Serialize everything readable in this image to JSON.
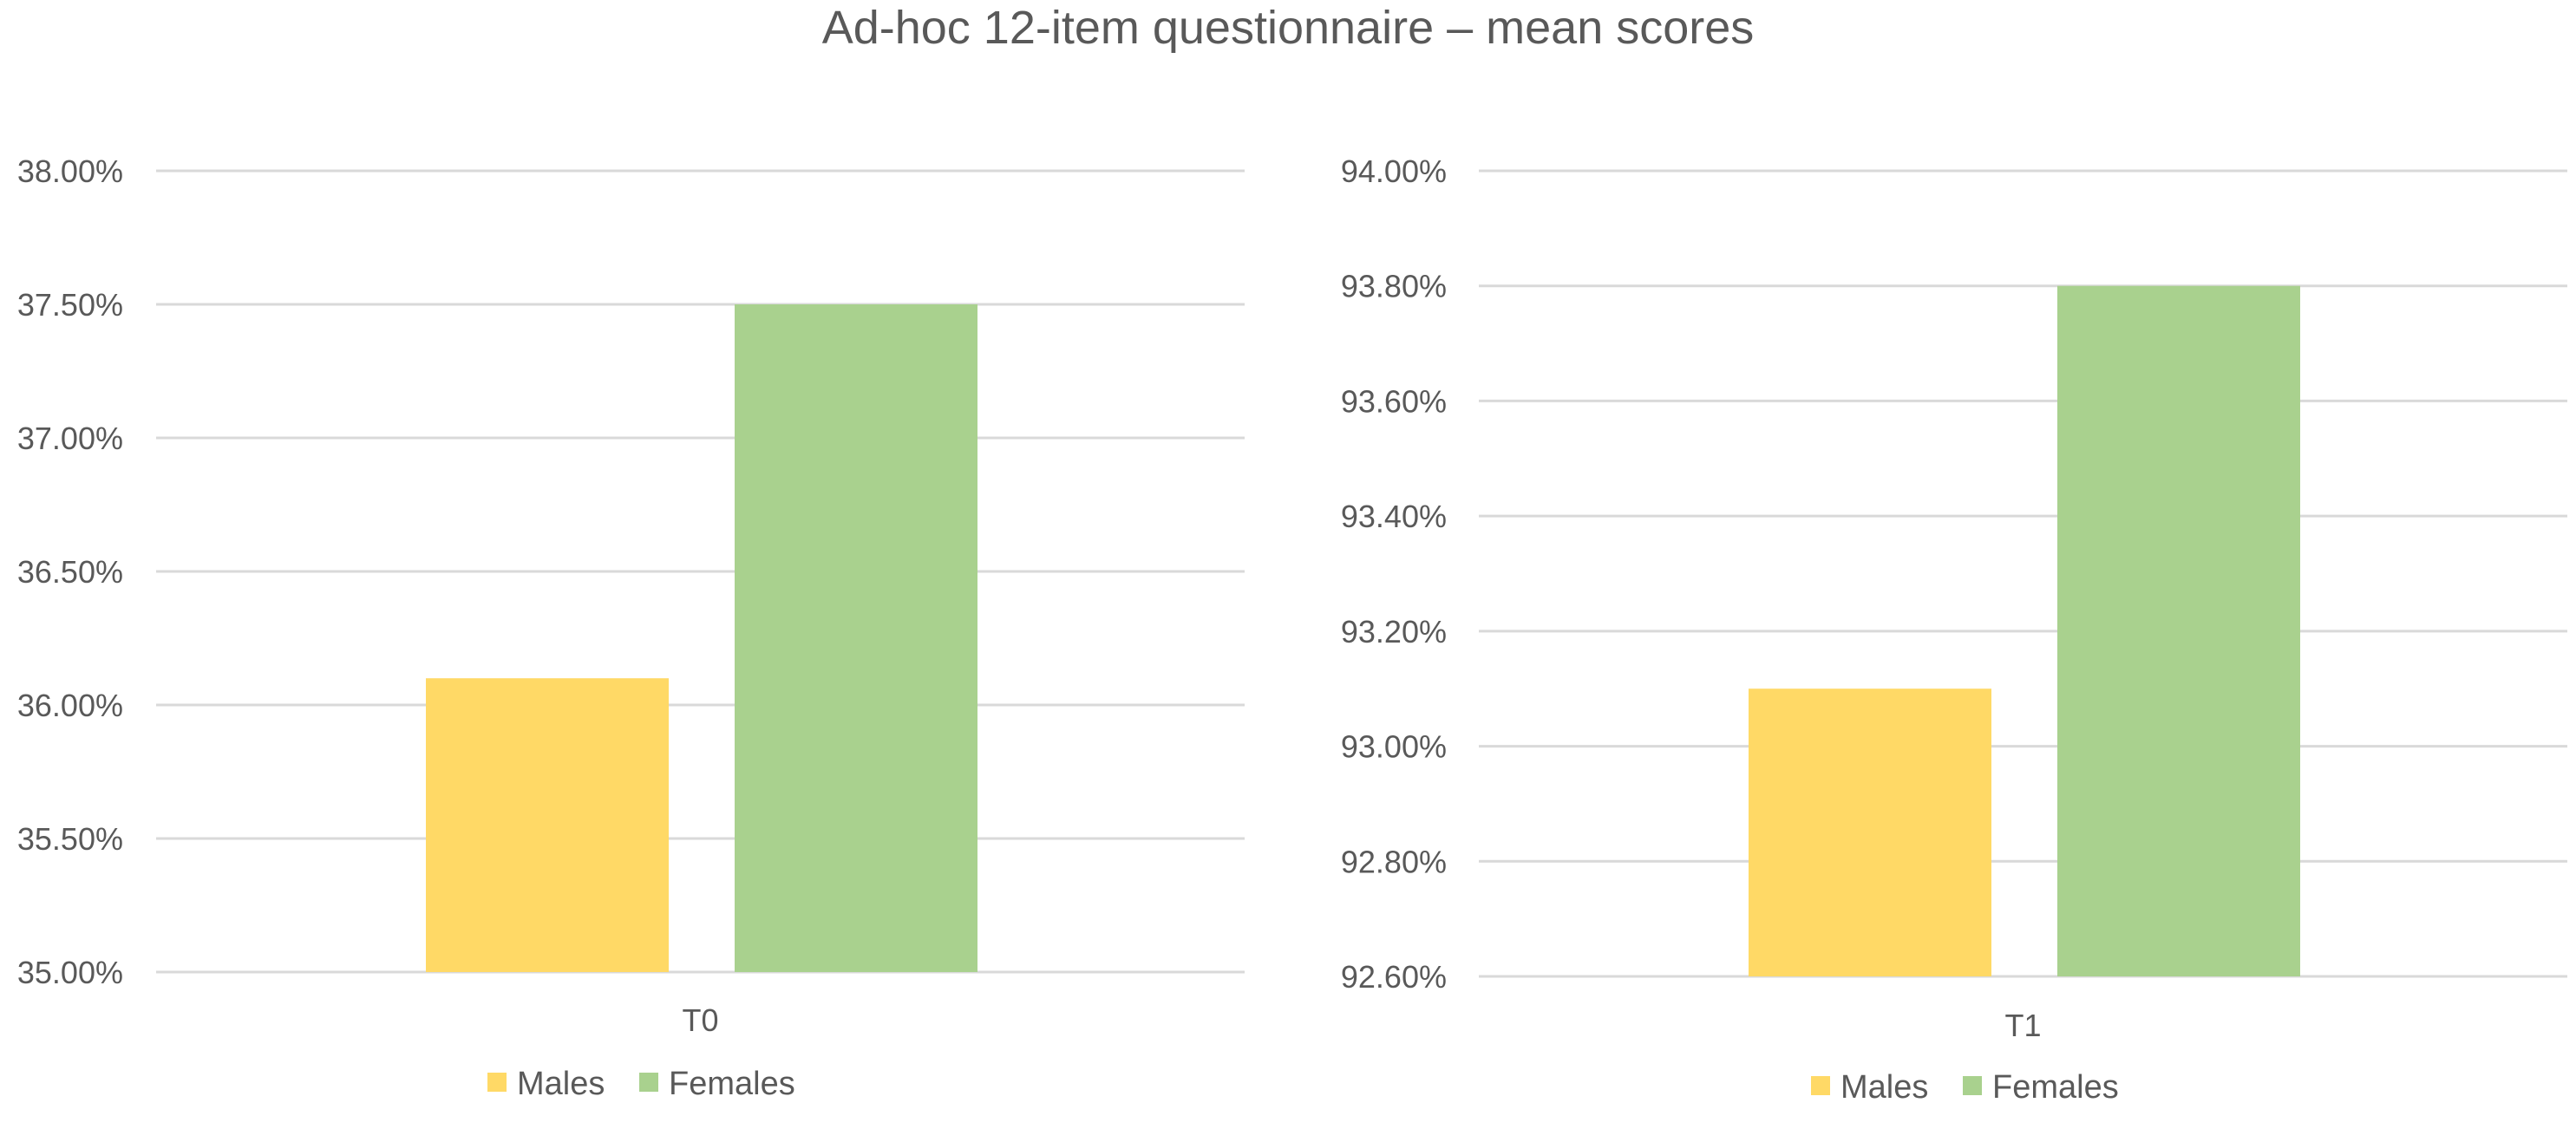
{
  "title": "Ad-hoc 12-item questionnaire – mean scores",
  "colors": {
    "males": "#FFD966",
    "females": "#A9D18E",
    "grid": "#D9D9D9",
    "text": "#595959"
  },
  "chart_data": [
    {
      "type": "bar",
      "categories": [
        "T0"
      ],
      "series": [
        {
          "name": "Males",
          "values": [
            36.1
          ]
        },
        {
          "name": "Females",
          "values": [
            37.5
          ]
        }
      ],
      "ylim": [
        35.0,
        38.0
      ],
      "ytick_step": 0.5,
      "ytick_labels": [
        "35.00%",
        "35.50%",
        "36.00%",
        "36.50%",
        "37.00%",
        "37.50%",
        "38.00%"
      ],
      "grid": true,
      "legend": "bottom"
    },
    {
      "type": "bar",
      "categories": [
        "T1"
      ],
      "series": [
        {
          "name": "Males",
          "values": [
            93.1
          ]
        },
        {
          "name": "Females",
          "values": [
            93.8
          ]
        }
      ],
      "ylim": [
        92.6,
        94.0
      ],
      "ytick_step": 0.2,
      "ytick_labels": [
        "92.60%",
        "92.80%",
        "93.00%",
        "93.20%",
        "93.40%",
        "93.60%",
        "93.80%",
        "94.00%"
      ],
      "grid": true,
      "legend": "bottom"
    }
  ]
}
